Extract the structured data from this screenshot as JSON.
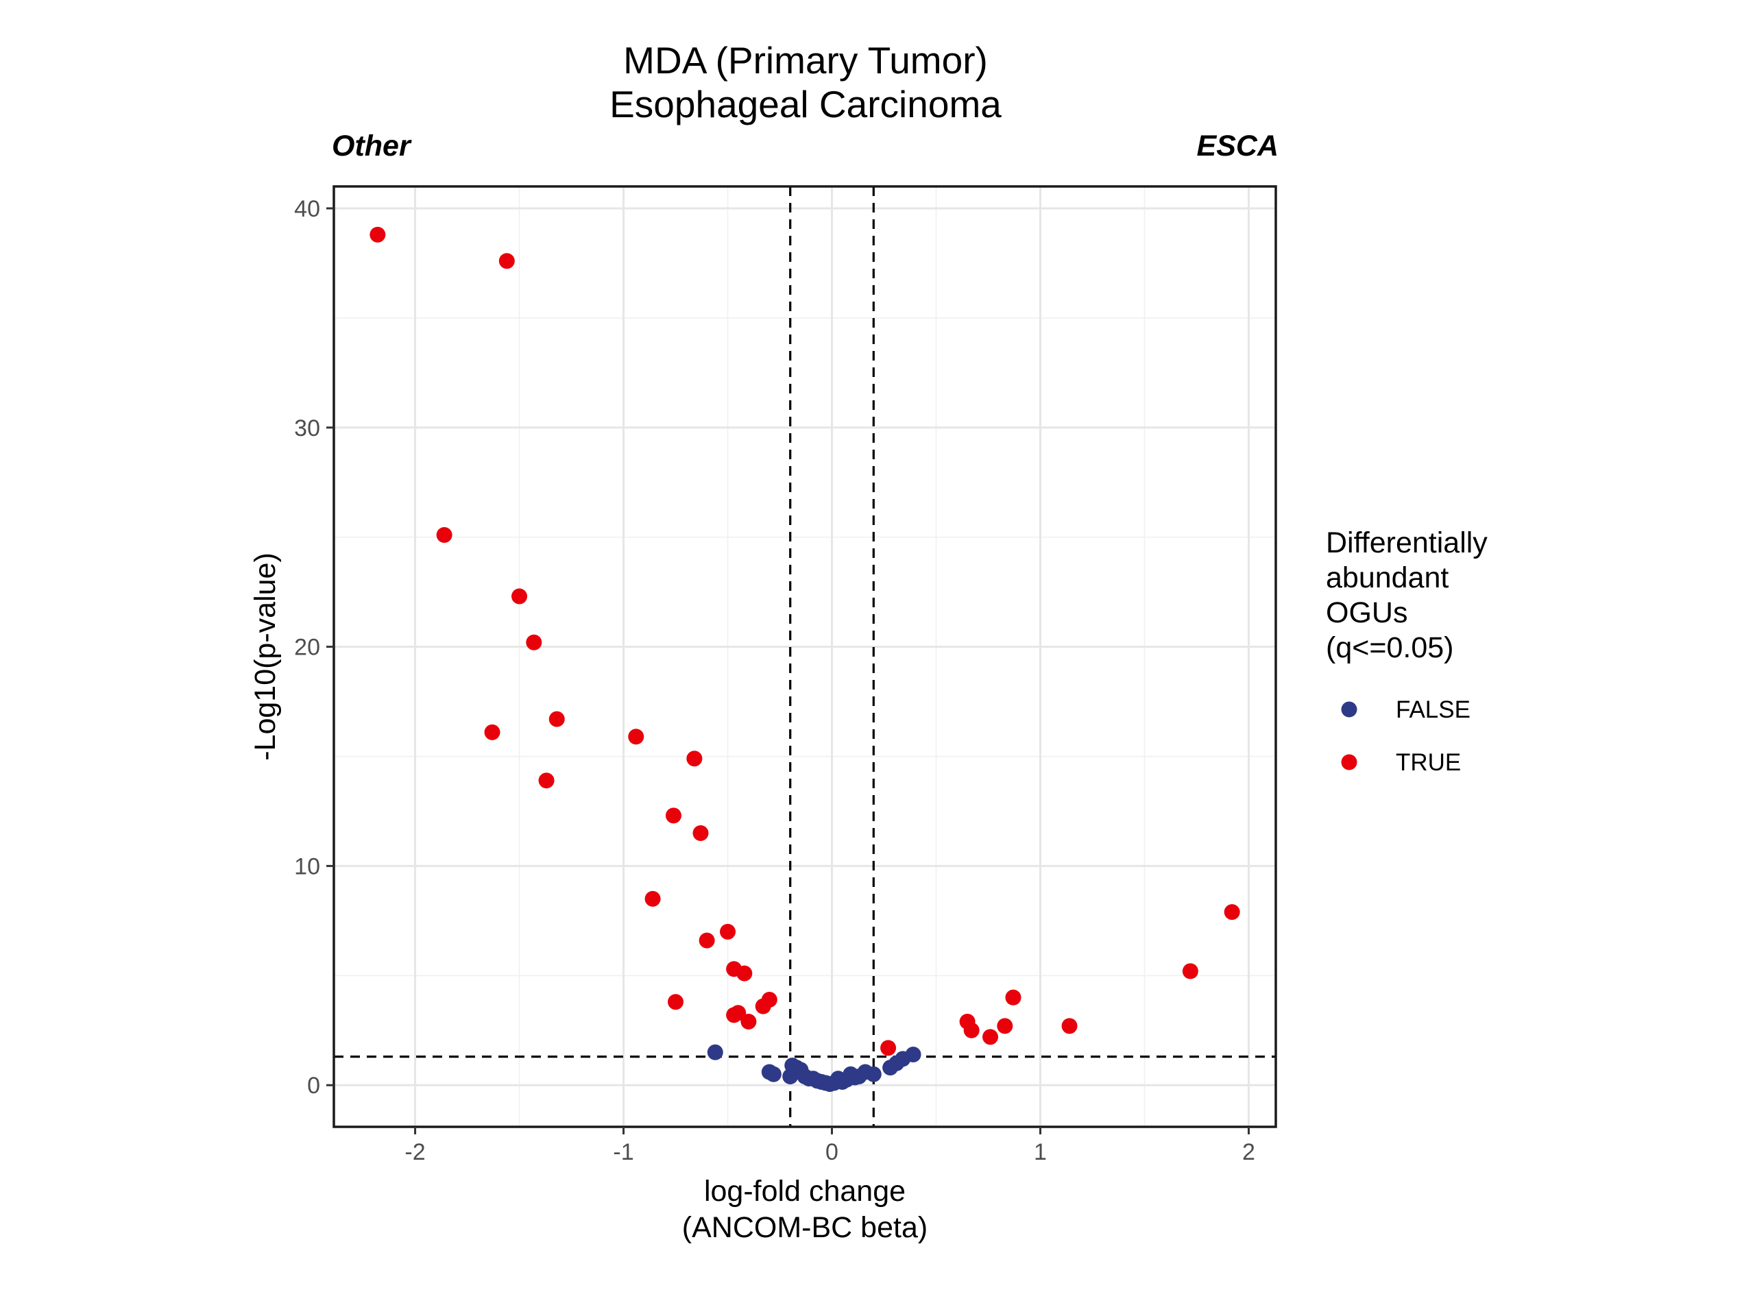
{
  "chart_data": {
    "type": "scatter",
    "title_lines": [
      "MDA (Primary Tumor)",
      "Esophageal Carcinoma"
    ],
    "left_label": "Other",
    "right_label": "ESCA",
    "xlabel_lines": [
      "log-fold change",
      "(ANCOM-BC beta)"
    ],
    "ylabel": "-Log10(p-value)",
    "xlim": [
      -2.39,
      2.13
    ],
    "ylim": [
      -1.9,
      41.0
    ],
    "x_ticks": [
      -2,
      -1,
      0,
      1,
      2
    ],
    "x_tick_labels": [
      "-2",
      "-1",
      "0",
      "1",
      "2"
    ],
    "y_ticks": [
      0,
      10,
      20,
      30,
      40
    ],
    "y_tick_labels": [
      "0",
      "10",
      "20",
      "30",
      "40"
    ],
    "grid": true,
    "threshold_lines": {
      "x": [
        -0.2,
        0.2
      ],
      "y": 1.3
    },
    "legend": {
      "title_lines": [
        "Differentially",
        "abundant",
        "OGUs",
        "(q<=0.05)"
      ],
      "position": "right",
      "entries": [
        {
          "label": "FALSE",
          "color": "#2e3a87"
        },
        {
          "label": "TRUE",
          "color": "#e8000b"
        }
      ]
    },
    "series": [
      {
        "name": "FALSE",
        "color": "#2e3a87",
        "points": [
          [
            -0.56,
            1.5
          ],
          [
            -0.3,
            0.6
          ],
          [
            -0.28,
            0.5
          ],
          [
            -0.2,
            0.4
          ],
          [
            -0.19,
            0.9
          ],
          [
            -0.17,
            0.8
          ],
          [
            -0.15,
            0.7
          ],
          [
            -0.13,
            0.4
          ],
          [
            -0.11,
            0.3
          ],
          [
            -0.09,
            0.3
          ],
          [
            -0.07,
            0.2
          ],
          [
            -0.05,
            0.15
          ],
          [
            -0.03,
            0.1
          ],
          [
            -0.01,
            0.05
          ],
          [
            0.01,
            0.1
          ],
          [
            0.03,
            0.3
          ],
          [
            0.05,
            0.15
          ],
          [
            0.07,
            0.25
          ],
          [
            0.09,
            0.5
          ],
          [
            0.11,
            0.35
          ],
          [
            0.13,
            0.4
          ],
          [
            0.16,
            0.6
          ],
          [
            0.2,
            0.5
          ],
          [
            0.28,
            0.8
          ],
          [
            0.31,
            1.0
          ],
          [
            0.34,
            1.2
          ],
          [
            0.39,
            1.4
          ]
        ]
      },
      {
        "name": "TRUE",
        "color": "#e8000b",
        "points": [
          [
            -2.18,
            38.8
          ],
          [
            -1.56,
            37.6
          ],
          [
            -1.86,
            25.1
          ],
          [
            -1.5,
            22.3
          ],
          [
            -1.43,
            20.2
          ],
          [
            -1.63,
            16.1
          ],
          [
            -1.32,
            16.7
          ],
          [
            -1.37,
            13.9
          ],
          [
            -0.94,
            15.9
          ],
          [
            -0.66,
            14.9
          ],
          [
            -0.76,
            12.3
          ],
          [
            -0.63,
            11.5
          ],
          [
            -0.86,
            8.5
          ],
          [
            -0.5,
            7.0
          ],
          [
            -0.6,
            6.6
          ],
          [
            -0.47,
            5.3
          ],
          [
            -0.42,
            5.1
          ],
          [
            -0.75,
            3.8
          ],
          [
            -0.3,
            3.9
          ],
          [
            -0.33,
            3.6
          ],
          [
            -0.45,
            3.3
          ],
          [
            -0.47,
            3.2
          ],
          [
            -0.4,
            2.9
          ],
          [
            0.27,
            1.7
          ],
          [
            0.65,
            2.9
          ],
          [
            0.67,
            2.5
          ],
          [
            0.76,
            2.2
          ],
          [
            0.83,
            2.7
          ],
          [
            0.87,
            4.0
          ],
          [
            1.14,
            2.7
          ],
          [
            1.72,
            5.2
          ],
          [
            1.92,
            7.9
          ]
        ]
      }
    ]
  }
}
